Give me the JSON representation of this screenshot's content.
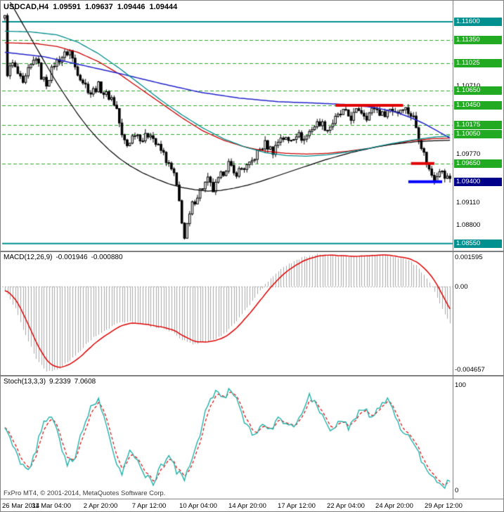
{
  "header": {
    "symbol": "USDCAD,H4",
    "open": "1.09591",
    "high": "1.09637",
    "low": "1.09446",
    "close": "1.09444"
  },
  "panels": {
    "macd": {
      "name": "MACD(12,26,9)",
      "value_main": "-0.001946",
      "value_signal": "-0.000880"
    },
    "stoch": {
      "name": "Stoch(13,3,3)",
      "value_main": "9.2339",
      "value_signal": "7.0608"
    },
    "copyright": "FxPro MT4, © 2001-2014, MetaQuotes Software Corp."
  },
  "colors": {
    "background": "#FFFFFF",
    "foreground": "#000000",
    "grid_green": "#22AA22",
    "level_teal": "#009090",
    "bid_navy": "#000089",
    "red": "#E00000",
    "blue": "#0000FF",
    "ma_red": "#CC0000",
    "ma_navy": "#2222CC",
    "ma_black": "#000000",
    "ma_teal": "#008B8B",
    "macd_hist": "#A8A8A8",
    "stoch_main": "#20B2AA",
    "stoch_signal": "#E00000"
  },
  "chart_data": {
    "type": "candlestick",
    "symbol": "USDCAD",
    "timeframe": "H4",
    "last_ohlc": {
      "open": 1.09591,
      "high": 1.09637,
      "low": 1.09446,
      "close": 1.09444
    },
    "bars": 172,
    "price_range": [
      1.0845,
      1.1187
    ],
    "volatility": 0.0011,
    "last_close": 1.09444,
    "close_path": [
      [
        0,
        1.1165
      ],
      [
        1,
        1.109
      ],
      [
        3,
        1.1102
      ],
      [
        5,
        1.1088
      ],
      [
        7,
        1.1072
      ],
      [
        9,
        1.1092
      ],
      [
        12,
        1.1112
      ],
      [
        14,
        1.1085
      ],
      [
        16,
        1.1075
      ],
      [
        19,
        1.1102
      ],
      [
        22,
        1.1112
      ],
      [
        25,
        1.112
      ],
      [
        27,
        1.1098
      ],
      [
        30,
        1.1078
      ],
      [
        33,
        1.1062
      ],
      [
        36,
        1.1072
      ],
      [
        38,
        1.1062
      ],
      [
        41,
        1.1055
      ],
      [
        43,
        1.104
      ],
      [
        45,
        1.1002
      ],
      [
        47,
        1.099
      ],
      [
        50,
        1.1008
      ],
      [
        53,
        1.0998
      ],
      [
        56,
        1.1008
      ],
      [
        58,
        1.0992
      ],
      [
        61,
        1.0978
      ],
      [
        63,
        1.0962
      ],
      [
        65,
        1.095
      ],
      [
        67,
        1.0912
      ],
      [
        69,
        1.0862
      ],
      [
        70,
        1.0878
      ],
      [
        72,
        1.0908
      ],
      [
        75,
        1.0928
      ],
      [
        78,
        1.0942
      ],
      [
        80,
        1.0928
      ],
      [
        83,
        1.0948
      ],
      [
        86,
        1.0965
      ],
      [
        88,
        1.095
      ],
      [
        91,
        1.0958
      ],
      [
        94,
        1.0962
      ],
      [
        97,
        1.098
      ],
      [
        100,
        1.0992
      ],
      [
        103,
        1.0982
      ],
      [
        106,
        1.1002
      ],
      [
        109,
        1.0996
      ],
      [
        112,
        1.1006
      ],
      [
        115,
        1.0998
      ],
      [
        118,
        1.1014
      ],
      [
        121,
        1.1022
      ],
      [
        124,
        1.1012
      ],
      [
        127,
        1.1026
      ],
      [
        130,
        1.1036
      ],
      [
        133,
        1.1028
      ],
      [
        136,
        1.104
      ],
      [
        139,
        1.103
      ],
      [
        142,
        1.1042
      ],
      [
        145,
        1.1032
      ],
      [
        148,
        1.104
      ],
      [
        151,
        1.1036
      ],
      [
        153,
        1.1044
      ],
      [
        155,
        1.1036
      ],
      [
        157,
        1.1028
      ],
      [
        159,
        1.1002
      ],
      [
        161,
        1.0978
      ],
      [
        163,
        1.0956
      ],
      [
        165,
        1.0944
      ],
      [
        167,
        1.0958
      ],
      [
        169,
        1.0946
      ],
      [
        171,
        1.09444
      ]
    ],
    "levels": {
      "teal_solid": [
        1.116,
        1.0855
      ],
      "green_dashed": [
        1.1135,
        1.11025,
        1.1065,
        1.1045,
        1.10175,
        1.1005,
        1.0965
      ]
    },
    "segments": [
      {
        "color": "#E00000",
        "price": 1.1045,
        "from": 127,
        "to": 153,
        "width": 4
      },
      {
        "color": "#E00000",
        "price": 1.0965,
        "from": 156,
        "to": 165,
        "width": 4
      },
      {
        "color": "#0000FF",
        "price": 1.094,
        "from": 155,
        "to": 168,
        "width": 4
      }
    ],
    "moving_averages": [
      {
        "name": "ma-red",
        "color": "#CC0000",
        "width": 1.3,
        "points": [
          [
            0,
            1.1131
          ],
          [
            12,
            1.113
          ],
          [
            20,
            1.1126
          ],
          [
            28,
            1.1118
          ],
          [
            36,
            1.1105
          ],
          [
            44,
            1.1088
          ],
          [
            52,
            1.1068
          ],
          [
            60,
            1.1048
          ],
          [
            68,
            1.1028
          ],
          [
            76,
            1.101
          ],
          [
            84,
            1.0997
          ],
          [
            92,
            1.0988
          ],
          [
            100,
            1.0982
          ],
          [
            108,
            1.0979
          ],
          [
            116,
            1.0978
          ],
          [
            124,
            1.0979
          ],
          [
            132,
            1.0982
          ],
          [
            140,
            1.0986
          ],
          [
            148,
            1.0991
          ],
          [
            156,
            1.0996
          ],
          [
            164,
            1.0999
          ],
          [
            171,
            1.1
          ]
        ]
      },
      {
        "name": "ma-navy",
        "color": "#2222CC",
        "width": 1.5,
        "points": [
          [
            0,
            1.1118
          ],
          [
            15,
            1.1112
          ],
          [
            30,
            1.11
          ],
          [
            45,
            1.1088
          ],
          [
            60,
            1.1075
          ],
          [
            75,
            1.1063
          ],
          [
            90,
            1.1055
          ],
          [
            105,
            1.105
          ],
          [
            120,
            1.1048
          ],
          [
            132,
            1.1046
          ],
          [
            142,
            1.1042
          ],
          [
            150,
            1.1036
          ],
          [
            156,
            1.1028
          ],
          [
            161,
            1.102
          ],
          [
            165,
            1.1012
          ],
          [
            168,
            1.1006
          ],
          [
            171,
            1.1
          ]
        ]
      },
      {
        "name": "ma-black",
        "color": "#000000",
        "width": 1.2,
        "points": [
          [
            0,
            1.12
          ],
          [
            4,
            1.1175
          ],
          [
            8,
            1.115
          ],
          [
            12,
            1.1125
          ],
          [
            16,
            1.11
          ],
          [
            20,
            1.1076
          ],
          [
            24,
            1.1054
          ],
          [
            28,
            1.1033
          ],
          [
            32,
            1.1014
          ],
          [
            36,
            1.0998
          ],
          [
            40,
            1.0984
          ],
          [
            44,
            1.0972
          ],
          [
            48,
            1.0962
          ],
          [
            53,
            1.0952
          ],
          [
            58,
            1.0944
          ],
          [
            63,
            1.0937
          ],
          [
            68,
            1.0932
          ],
          [
            73,
            1.0929
          ],
          [
            78,
            1.0927
          ],
          [
            83,
            1.0928
          ],
          [
            88,
            1.0931
          ],
          [
            93,
            1.0935
          ],
          [
            98,
            1.094
          ],
          [
            103,
            1.0946
          ],
          [
            108,
            1.0952
          ],
          [
            113,
            1.0958
          ],
          [
            118,
            1.0964
          ],
          [
            123,
            1.097
          ],
          [
            128,
            1.0975
          ],
          [
            133,
            1.098
          ],
          [
            138,
            1.0984
          ],
          [
            143,
            1.0988
          ],
          [
            148,
            1.0991
          ],
          [
            153,
            1.0993
          ],
          [
            158,
            1.0995
          ],
          [
            163,
            1.0996
          ],
          [
            171,
            1.0997
          ]
        ]
      },
      {
        "name": "ma-teal",
        "color": "#008B8B",
        "width": 1.3,
        "points": [
          [
            0,
            1.1147
          ],
          [
            10,
            1.1146
          ],
          [
            20,
            1.1142
          ],
          [
            28,
            1.1132
          ],
          [
            36,
            1.1116
          ],
          [
            44,
            1.1096
          ],
          [
            52,
            1.1074
          ],
          [
            60,
            1.1052
          ],
          [
            68,
            1.1032
          ],
          [
            76,
            1.1014
          ],
          [
            84,
            1.0999
          ],
          [
            92,
            1.0988
          ],
          [
            100,
            1.098
          ],
          [
            108,
            1.0976
          ],
          [
            116,
            1.0975
          ],
          [
            124,
            1.0977
          ],
          [
            132,
            1.0981
          ],
          [
            140,
            1.0986
          ],
          [
            148,
            1.0992
          ],
          [
            156,
            1.0997
          ],
          [
            164,
            1.1001
          ],
          [
            171,
            1.1003
          ]
        ]
      }
    ],
    "price_labels": [
      {
        "text": "1.11600",
        "price": 1.116,
        "style": "teal"
      },
      {
        "text": "1.11350",
        "price": 1.1135,
        "style": "green"
      },
      {
        "text": "1.11025",
        "price": 1.11025,
        "style": "green"
      },
      {
        "text": "1.10710",
        "price": 1.1071,
        "style": "plain"
      },
      {
        "text": "1.10650",
        "price": 1.1065,
        "style": "green"
      },
      {
        "text": "1.10450",
        "price": 1.1045,
        "style": "green"
      },
      {
        "text": "1.10175",
        "price": 1.10175,
        "style": "green"
      },
      {
        "text": "1.10050",
        "price": 1.1005,
        "style": "green"
      },
      {
        "text": "1.09770",
        "price": 1.0977,
        "style": "plain"
      },
      {
        "text": "1.09650",
        "price": 1.0965,
        "style": "green"
      },
      {
        "text": "1.09400",
        "price": 1.094,
        "style": "navy"
      },
      {
        "text": "1.09110",
        "price": 1.0911,
        "style": "plain"
      },
      {
        "text": "1.08800",
        "price": 1.088,
        "style": "plain"
      },
      {
        "text": "1.08550",
        "price": 1.0855,
        "style": "teal"
      }
    ],
    "x_labels": [
      "26 Mar 2014",
      "31 Mar 04:00",
      "2 Apr 20:00",
      "7 Apr 12:00",
      "10 Apr 04:00",
      "14 Apr 20:00",
      "17 Apr 12:00",
      "22 Apr 04:00",
      "24 Apr 20:00",
      "29 Apr 12:00"
    ],
    "macd": {
      "range": [
        -0.004657,
        0.0018
      ],
      "signal_period": 7,
      "last": -0.001946,
      "last_signal": -0.00088,
      "points": [
        [
          0,
          -0.0002
        ],
        [
          4,
          -0.0012
        ],
        [
          8,
          -0.0026
        ],
        [
          12,
          -0.0038
        ],
        [
          16,
          -0.00445
        ],
        [
          20,
          -0.0044
        ],
        [
          24,
          -0.004
        ],
        [
          28,
          -0.0035
        ],
        [
          32,
          -0.0029
        ],
        [
          36,
          -0.0025
        ],
        [
          40,
          -0.0022
        ],
        [
          44,
          -0.0019
        ],
        [
          48,
          -0.00185
        ],
        [
          52,
          -0.002
        ],
        [
          56,
          -0.0021
        ],
        [
          60,
          -0.0022
        ],
        [
          64,
          -0.0024
        ],
        [
          68,
          -0.0028
        ],
        [
          72,
          -0.003
        ],
        [
          76,
          -0.00295
        ],
        [
          80,
          -0.0028
        ],
        [
          84,
          -0.0025
        ],
        [
          88,
          -0.002
        ],
        [
          92,
          -0.0013
        ],
        [
          96,
          -0.0006
        ],
        [
          100,
          0.0001
        ],
        [
          104,
          0.0007
        ],
        [
          108,
          0.0011
        ],
        [
          112,
          0.0014
        ],
        [
          116,
          0.00158
        ],
        [
          120,
          0.00168
        ],
        [
          124,
          0.00165
        ],
        [
          128,
          0.0016
        ],
        [
          132,
          0.00158
        ],
        [
          136,
          0.0016
        ],
        [
          140,
          0.00163
        ],
        [
          144,
          0.00166
        ],
        [
          148,
          0.0016
        ],
        [
          152,
          0.00148
        ],
        [
          155,
          0.00135
        ],
        [
          158,
          0.0011
        ],
        [
          161,
          0.0006
        ],
        [
          164,
          0.0
        ],
        [
          167,
          -0.0009
        ],
        [
          169,
          -0.0015
        ],
        [
          171,
          -0.001946
        ]
      ],
      "scale_labels": [
        {
          "text": "0.001595",
          "value": 0.001595
        },
        {
          "text": "0.00",
          "value": 0
        },
        {
          "text": "-0.004657",
          "value": -0.004657
        }
      ]
    },
    "stoch": {
      "range": [
        0,
        100
      ],
      "signal_period": 3,
      "last_main": 9.2339,
      "last_signal": 7.0608,
      "points": [
        [
          0,
          62
        ],
        [
          3,
          45
        ],
        [
          6,
          28
        ],
        [
          9,
          20
        ],
        [
          12,
          40
        ],
        [
          15,
          66
        ],
        [
          18,
          72
        ],
        [
          21,
          48
        ],
        [
          24,
          26
        ],
        [
          27,
          34
        ],
        [
          30,
          58
        ],
        [
          33,
          80
        ],
        [
          36,
          88
        ],
        [
          39,
          60
        ],
        [
          42,
          30
        ],
        [
          45,
          18
        ],
        [
          48,
          40
        ],
        [
          51,
          26
        ],
        [
          54,
          14
        ],
        [
          57,
          8
        ],
        [
          60,
          22
        ],
        [
          63,
          36
        ],
        [
          66,
          18
        ],
        [
          69,
          10
        ],
        [
          72,
          30
        ],
        [
          75,
          55
        ],
        [
          78,
          82
        ],
        [
          81,
          96
        ],
        [
          84,
          88
        ],
        [
          87,
          97
        ],
        [
          90,
          80
        ],
        [
          93,
          60
        ],
        [
          96,
          52
        ],
        [
          99,
          65
        ],
        [
          102,
          58
        ],
        [
          105,
          70
        ],
        [
          108,
          64
        ],
        [
          111,
          58
        ],
        [
          114,
          76
        ],
        [
          117,
          90
        ],
        [
          120,
          82
        ],
        [
          123,
          65
        ],
        [
          126,
          58
        ],
        [
          129,
          68
        ],
        [
          132,
          60
        ],
        [
          135,
          72
        ],
        [
          138,
          80
        ],
        [
          141,
          70
        ],
        [
          144,
          82
        ],
        [
          147,
          88
        ],
        [
          150,
          72
        ],
        [
          153,
          55
        ],
        [
          156,
          48
        ],
        [
          159,
          35
        ],
        [
          162,
          20
        ],
        [
          165,
          10
        ],
        [
          167,
          5
        ],
        [
          169,
          6
        ],
        [
          171,
          9.2339
        ]
      ],
      "scale_labels": [
        {
          "text": "100",
          "value": 100
        },
        {
          "text": "0",
          "value": 0
        }
      ]
    }
  }
}
